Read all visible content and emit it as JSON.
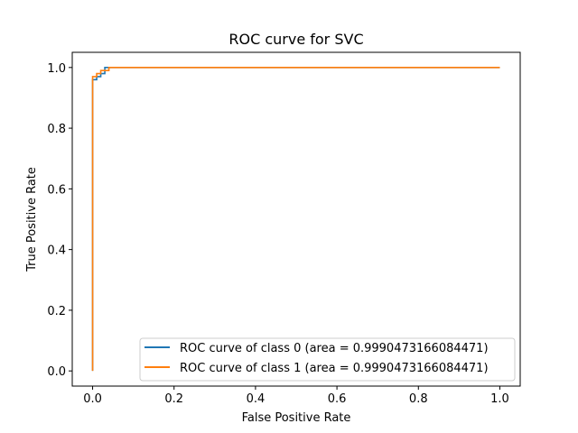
{
  "chart_data": {
    "type": "line",
    "title": "ROC curve for SVC",
    "xlabel": "False Positive Rate",
    "ylabel": "True Positive Rate",
    "xlim": [
      -0.05,
      1.05
    ],
    "ylim": [
      -0.05,
      1.05
    ],
    "xticks": [
      0.0,
      0.2,
      0.4,
      0.6,
      0.8,
      1.0
    ],
    "yticks": [
      0.0,
      0.2,
      0.4,
      0.6,
      0.8,
      1.0
    ],
    "xtick_labels": [
      "0.0",
      "0.2",
      "0.4",
      "0.6",
      "0.8",
      "1.0"
    ],
    "ytick_labels": [
      "0.0",
      "0.2",
      "0.4",
      "0.6",
      "0.8",
      "1.0"
    ],
    "grid": false,
    "legend_position": "lower-right",
    "series": [
      {
        "name": "ROC curve of class 0 (area = 0.9990473166084471)",
        "color": "#1f77b4",
        "x": [
          0.0,
          0.0,
          0.0,
          0.01,
          0.01,
          0.02,
          0.02,
          0.03,
          0.03,
          0.04,
          0.04,
          1.0
        ],
        "y": [
          0.0,
          0.96,
          0.96,
          0.96,
          0.97,
          0.97,
          0.98,
          0.98,
          1.0,
          1.0,
          1.0,
          1.0
        ]
      },
      {
        "name": "ROC curve of class 1 (area = 0.9990473166084471)",
        "color": "#ff7f0e",
        "x": [
          0.0,
          0.0,
          0.0,
          0.01,
          0.01,
          0.02,
          0.02,
          0.03,
          0.03,
          0.04,
          0.04,
          1.0
        ],
        "y": [
          0.0,
          0.97,
          0.97,
          0.97,
          0.98,
          0.98,
          0.99,
          0.99,
          0.99,
          0.99,
          1.0,
          1.0
        ]
      }
    ]
  }
}
